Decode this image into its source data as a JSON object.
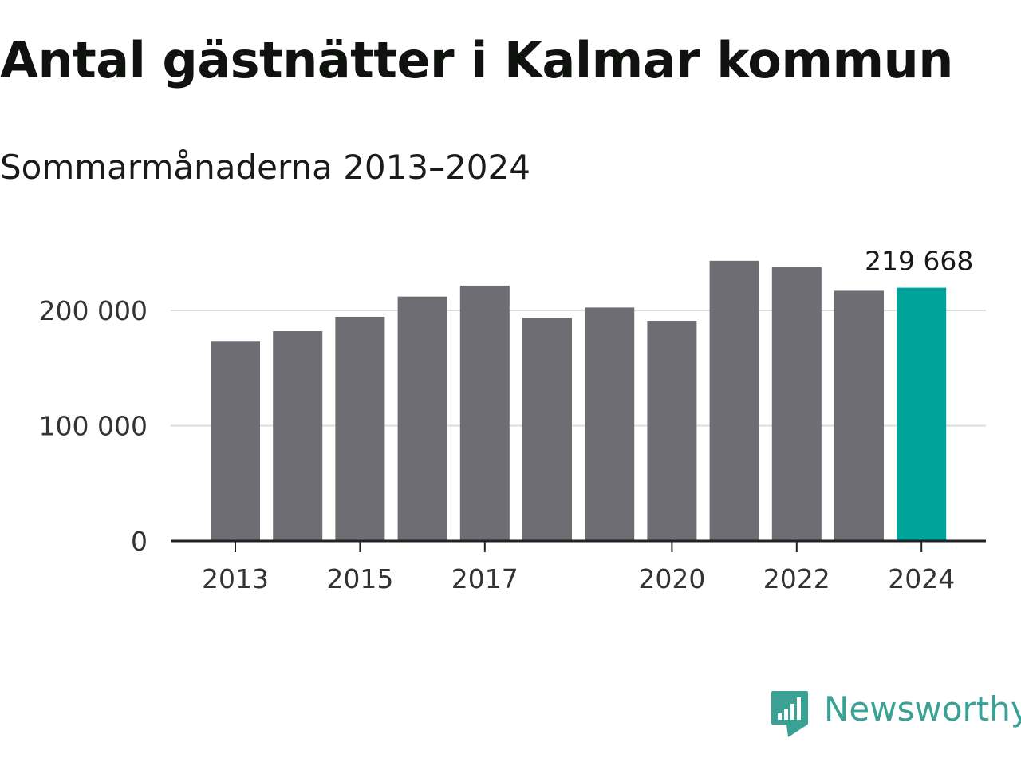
{
  "title": "Antal gästnätter i Kalmar kommun",
  "subtitle": "Sommarmånaderna 2013–2024",
  "brand": {
    "name": "Newsworthy",
    "color": "#3aa195"
  },
  "colors": {
    "bar": "#6e6d73",
    "highlight": "#00a39a",
    "grid": "#dddddd",
    "axis": "#222222",
    "text": "#333333"
  },
  "chart_data": {
    "type": "bar",
    "title": "Antal gästnätter i Kalmar kommun",
    "subtitle": "Sommarmånaderna 2013–2024",
    "xlabel": "",
    "ylabel": "",
    "categories": [
      "2013",
      "2014",
      "2015",
      "2016",
      "2017",
      "2018",
      "2019",
      "2020",
      "2021",
      "2022",
      "2023",
      "2024"
    ],
    "values": [
      173500,
      182000,
      194500,
      212000,
      221500,
      193500,
      202500,
      191000,
      243000,
      237500,
      217000,
      219668
    ],
    "highlight_index": 11,
    "highlight_label": "219 668",
    "ylim": [
      0,
      250000
    ],
    "y_ticks": [
      {
        "value": 0,
        "label": "0"
      },
      {
        "value": 100000,
        "label": "100 000"
      },
      {
        "value": 200000,
        "label": "200 000"
      }
    ],
    "x_ticks": [
      "2013",
      "2015",
      "2017",
      "2020",
      "2022",
      "2024"
    ],
    "grid": true,
    "legend": "none"
  }
}
